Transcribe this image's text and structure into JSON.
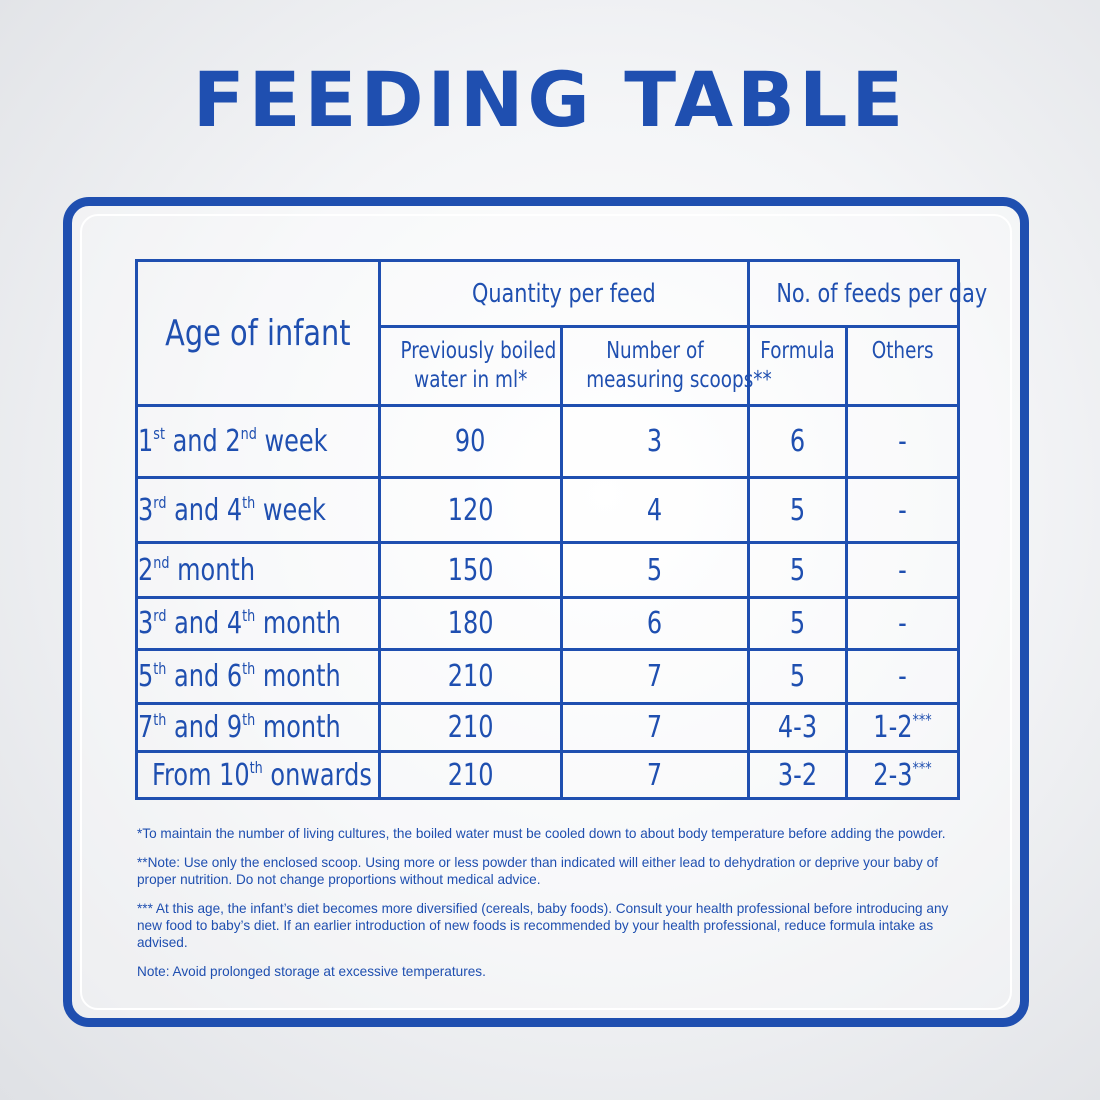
{
  "title": "FEEDING TABLE",
  "table": {
    "headers": {
      "age": "Age of infant",
      "quantity_group": "Quantity per feed",
      "feeds_group": "No. of feeds per day",
      "water_line1": "Previously boiled",
      "water_line2": "water in ml*",
      "scoops_line1": "Number of",
      "scoops_line2": "measuring scoops**",
      "formula": "Formula",
      "others": "Others"
    },
    "rows": [
      {
        "age": {
          "p1": "1",
          "s1": "st",
          "p2": " and 2",
          "s2": "nd",
          "p3": " week"
        },
        "water": "90",
        "scoops": "3",
        "formula": "6",
        "others": "-",
        "others_sup": ""
      },
      {
        "age": {
          "p1": "3",
          "s1": "rd",
          "p2": " and 4",
          "s2": "th",
          "p3": " week"
        },
        "water": "120",
        "scoops": "4",
        "formula": "5",
        "others": "-",
        "others_sup": ""
      },
      {
        "age": {
          "p1": "2",
          "s1": "nd",
          "p2": " month",
          "s2": "",
          "p3": ""
        },
        "water": "150",
        "scoops": "5",
        "formula": "5",
        "others": "-",
        "others_sup": ""
      },
      {
        "age": {
          "p1": "3",
          "s1": "rd",
          "p2": " and 4",
          "s2": "th",
          "p3": " month"
        },
        "water": "180",
        "scoops": "6",
        "formula": "5",
        "others": "-",
        "others_sup": ""
      },
      {
        "age": {
          "p1": "5",
          "s1": "th",
          "p2": " and 6",
          "s2": "th",
          "p3": " month"
        },
        "water": "210",
        "scoops": "7",
        "formula": "5",
        "others": "-",
        "others_sup": ""
      },
      {
        "age": {
          "p1": "7",
          "s1": "th",
          "p2": " and 9",
          "s2": "th",
          "p3": " month"
        },
        "water": "210",
        "scoops": "7",
        "formula": "4-3",
        "others": "1-2",
        "others_sup": "***"
      },
      {
        "age": {
          "p1": "From 10",
          "s1": "th",
          "p2": " onwards",
          "s2": "",
          "p3": ""
        },
        "water": "210",
        "scoops": "7",
        "formula": "3-2",
        "others": "2-3",
        "others_sup": "***"
      }
    ]
  },
  "notes": [
    "*To maintain the number of living cultures, the boiled water must be cooled  down to about body temperature before adding the powder.",
    "**Note: Use only the enclosed scoop. Using more or less powder than indicated will either lead to dehydration or deprive your baby of proper nutrition. Do not change proportions without medical advice.",
    "*** At this age, the infant’s diet becomes more diversified (cereals, baby foods). Consult your health professional before introducing any new food to baby’s diet. If an earlier introduction of new foods is recommended by your health professional, reduce formula intake as advised.",
    "Note: Avoid prolonged storage at excessive temperatures."
  ],
  "colors": {
    "brand_blue": "#1f4fb0"
  }
}
